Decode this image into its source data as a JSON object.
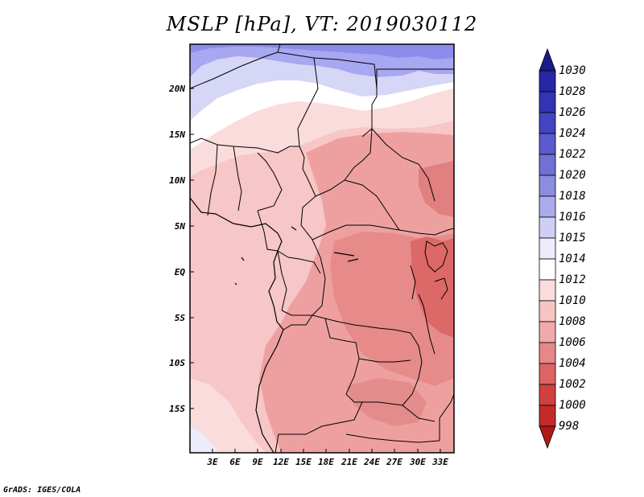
{
  "title": "MSLP [hPa], VT: 2019030112",
  "map": {
    "lat_labels": [
      "20N",
      "15N",
      "10N",
      "5N",
      "EQ",
      "5S",
      "10S",
      "15S"
    ],
    "lon_labels": [
      "3E",
      "6E",
      "9E",
      "12E",
      "15E",
      "18E",
      "21E",
      "24E",
      "27E",
      "30E",
      "33E"
    ]
  },
  "colorbar": {
    "levels": [
      "1030",
      "1028",
      "1026",
      "1024",
      "1022",
      "1020",
      "1018",
      "1016",
      "1015",
      "1014",
      "1012",
      "1010",
      "1008",
      "1006",
      "1004",
      "1002",
      "1000",
      "998"
    ],
    "colors": [
      "#1a1a8c",
      "#2626a6",
      "#3333b3",
      "#4444c0",
      "#5a5acc",
      "#7070d6",
      "#8c8ce0",
      "#ababeb",
      "#cfcff5",
      "#ececfa",
      "#ffffff",
      "#fbdcdc",
      "#f7c4c4",
      "#f0aaaa",
      "#e68888",
      "#dd6464",
      "#d04040",
      "#c42a2a",
      "#b01818"
    ]
  },
  "footer": "GrADS: IGES/COLA",
  "colors": {
    "high_pressure": "#8a8aee",
    "mid_pressure": "#f7c4c4",
    "low_pressure": "#e06a6a",
    "border": "#000000"
  }
}
